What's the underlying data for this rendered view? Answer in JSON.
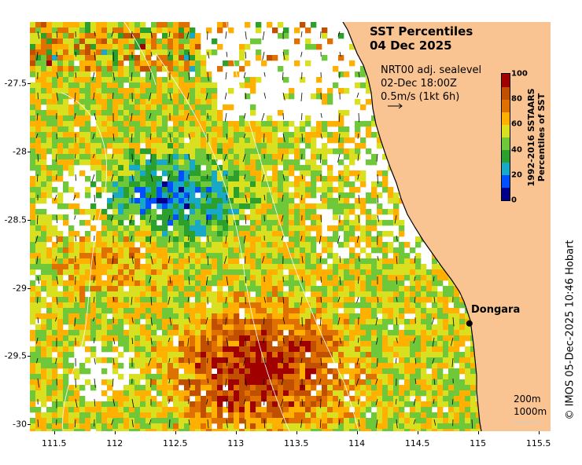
{
  "title": {
    "line1": "SST Percentiles",
    "line2": "04 Dec 2025"
  },
  "overlay": {
    "line1": "NRT00 adj. sealevel",
    "line2": "02-Dec 18:00Z",
    "line3": "0.5m/s (1kt 6h)"
  },
  "colorbar": {
    "title_line1": "1992-2016 SSTAARS",
    "title_line2": "Percentiles of SST",
    "ticks": [
      "0",
      "20",
      "40",
      "60",
      "80",
      "100"
    ],
    "colors": [
      "#00008b",
      "#0050ff",
      "#18a8c8",
      "#2ca02c",
      "#6fc83a",
      "#d8e020",
      "#ffb000",
      "#e07000",
      "#c05000",
      "#a00000"
    ]
  },
  "axes": {
    "x_ticks": [
      "111.5",
      "112",
      "112.5",
      "113",
      "113.5",
      "114",
      "114.5",
      "115",
      "115.5"
    ],
    "y_ticks": [
      "-27.5",
      "-28",
      "-28.5",
      "-29",
      "-29.5",
      "-30"
    ],
    "x_range": [
      111.3,
      115.6
    ],
    "y_range": [
      -30.05,
      -27.05
    ]
  },
  "city": {
    "name": "Dongara",
    "lon": 114.93,
    "lat": -29.26
  },
  "depth_contours": {
    "line1": "200m",
    "line2": "1000m"
  },
  "credit": "© IMOS 05-Dec-2025 10:46 Hobart",
  "colors": {
    "land": "#f9c491",
    "coastline": "#000000",
    "contour": "#ffffff",
    "missing": "#ffffff"
  }
}
